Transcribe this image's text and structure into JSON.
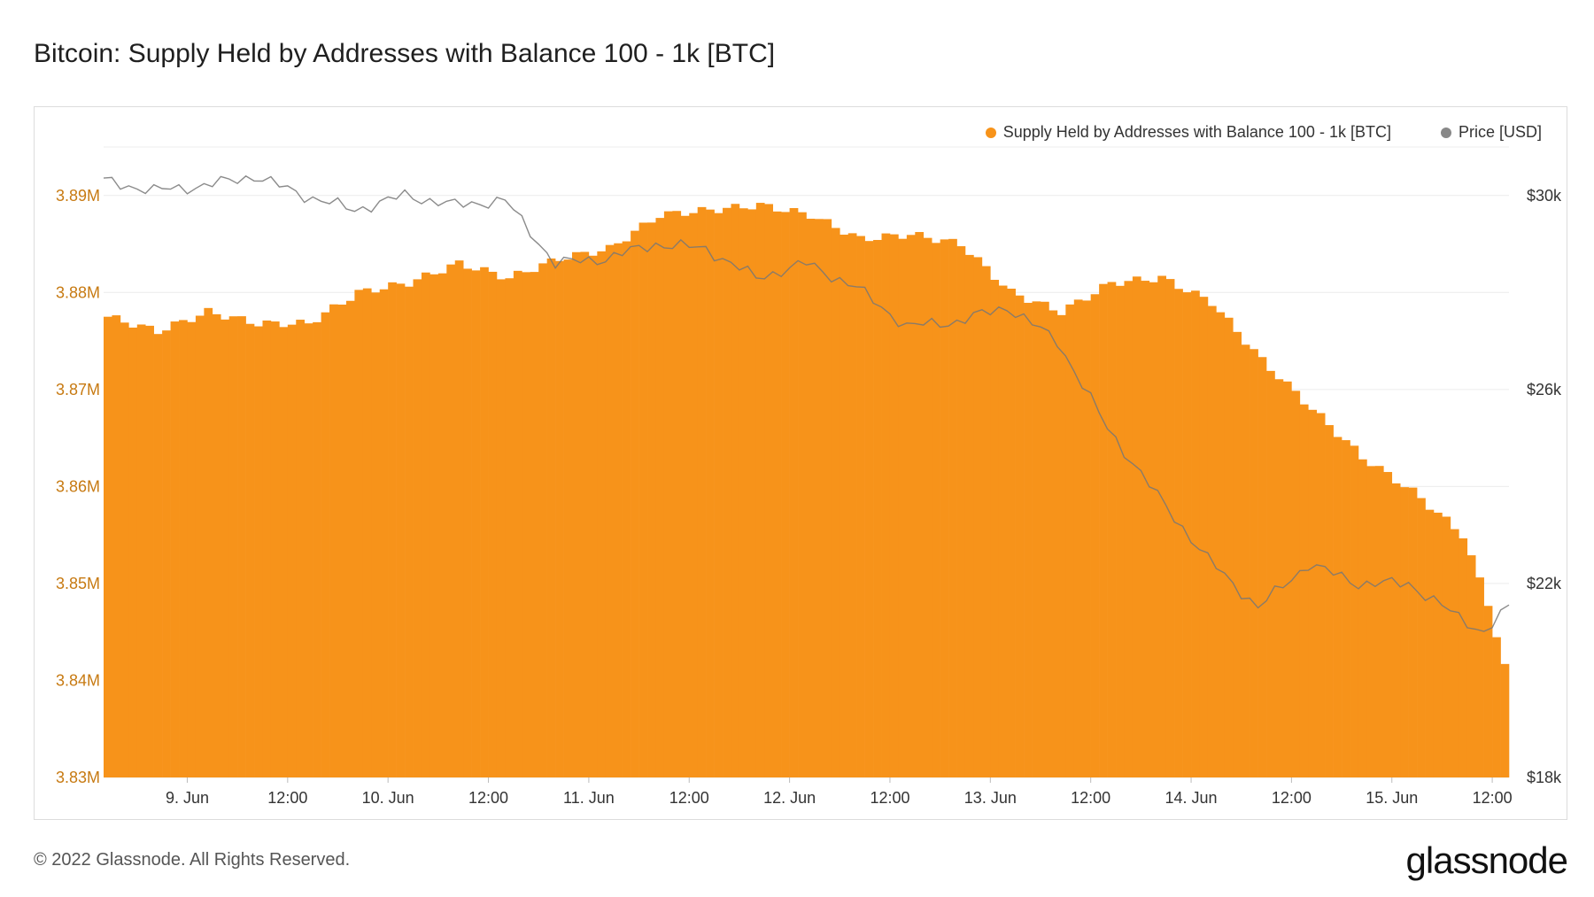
{
  "chart_data": {
    "type": "bar",
    "title": "Bitcoin: Supply Held by Addresses with Balance 100 - 1k [BTC]",
    "legend_position": "top-right",
    "grid": true,
    "x_tick_labels": [
      "9. Jun",
      "12:00",
      "10. Jun",
      "12:00",
      "11. Jun",
      "12:00",
      "12. Jun",
      "12:00",
      "13. Jun",
      "12:00",
      "14. Jun",
      "12:00",
      "15. Jun",
      "12:00"
    ],
    "x_start": "2022-06-08 14:00",
    "x_end": "2022-06-15 14:00",
    "y_left": {
      "ticks": [
        "3.83M",
        "3.84M",
        "3.85M",
        "3.86M",
        "3.87M",
        "3.88M",
        "3.89M"
      ],
      "ylim": [
        3830000,
        3895000
      ]
    },
    "y_right": {
      "ticks": [
        "$18k",
        "$22k",
        "$26k",
        "$30k"
      ],
      "ylim": [
        18000,
        31000
      ]
    },
    "series": [
      {
        "name": "Supply Held by Addresses with Balance 100 - 1k [BTC]",
        "type": "bar",
        "axis": "left",
        "color": "#f7931a",
        "x": [
          "2022-06-08 14:00",
          "2022-06-08 20:00",
          "2022-06-09 02:00",
          "2022-06-09 08:00",
          "2022-06-09 14:00",
          "2022-06-09 20:00",
          "2022-06-10 02:00",
          "2022-06-10 08:00",
          "2022-06-10 14:00",
          "2022-06-10 20:00",
          "2022-06-11 02:00",
          "2022-06-11 08:00",
          "2022-06-11 14:00",
          "2022-06-11 20:00",
          "2022-06-12 02:00",
          "2022-06-12 08:00",
          "2022-06-12 14:00",
          "2022-06-12 20:00",
          "2022-06-13 02:00",
          "2022-06-13 08:00",
          "2022-06-13 14:00",
          "2022-06-13 20:00",
          "2022-06-14 02:00",
          "2022-06-14 08:00",
          "2022-06-14 14:00",
          "2022-06-14 20:00",
          "2022-06-15 02:00",
          "2022-06-15 08:00",
          "2022-06-15 11:00",
          "2022-06-15 14:00"
        ],
        "values": [
          3877500,
          3876000,
          3878000,
          3876800,
          3876800,
          3880000,
          3881000,
          3883000,
          3881500,
          3883500,
          3884500,
          3888000,
          3888500,
          3889000,
          3888000,
          3885500,
          3886000,
          3885000,
          3880000,
          3878000,
          3881000,
          3881500,
          3879000,
          3873000,
          3868000,
          3863000,
          3859500,
          3855000,
          3848000,
          3838000
        ]
      },
      {
        "name": "Price [USD]",
        "type": "line",
        "axis": "right",
        "color": "#888888",
        "x": [
          "2022-06-08 14:00",
          "2022-06-08 20:00",
          "2022-06-09 02:00",
          "2022-06-09 08:00",
          "2022-06-09 14:00",
          "2022-06-09 20:00",
          "2022-06-10 02:00",
          "2022-06-10 08:00",
          "2022-06-10 14:00",
          "2022-06-10 20:00",
          "2022-06-11 02:00",
          "2022-06-11 08:00",
          "2022-06-11 14:00",
          "2022-06-11 20:00",
          "2022-06-12 02:00",
          "2022-06-12 08:00",
          "2022-06-12 14:00",
          "2022-06-12 20:00",
          "2022-06-13 02:00",
          "2022-06-13 08:00",
          "2022-06-13 14:00",
          "2022-06-13 20:00",
          "2022-06-14 02:00",
          "2022-06-14 08:00",
          "2022-06-14 14:00",
          "2022-06-14 20:00",
          "2022-06-15 02:00",
          "2022-06-15 08:00",
          "2022-06-15 11:00",
          "2022-06-15 14:00"
        ],
        "values": [
          30300,
          30100,
          30200,
          30400,
          30000,
          29700,
          30000,
          29800,
          29900,
          28600,
          28700,
          29000,
          28900,
          28300,
          28600,
          28100,
          27300,
          27400,
          27700,
          27000,
          25200,
          23800,
          22500,
          21500,
          22400,
          22000,
          22000,
          21300,
          21000,
          21500
        ]
      }
    ]
  },
  "footer": {
    "copyright": "© 2022 Glassnode. All Rights Reserved.",
    "logo_text": "glassnode"
  }
}
